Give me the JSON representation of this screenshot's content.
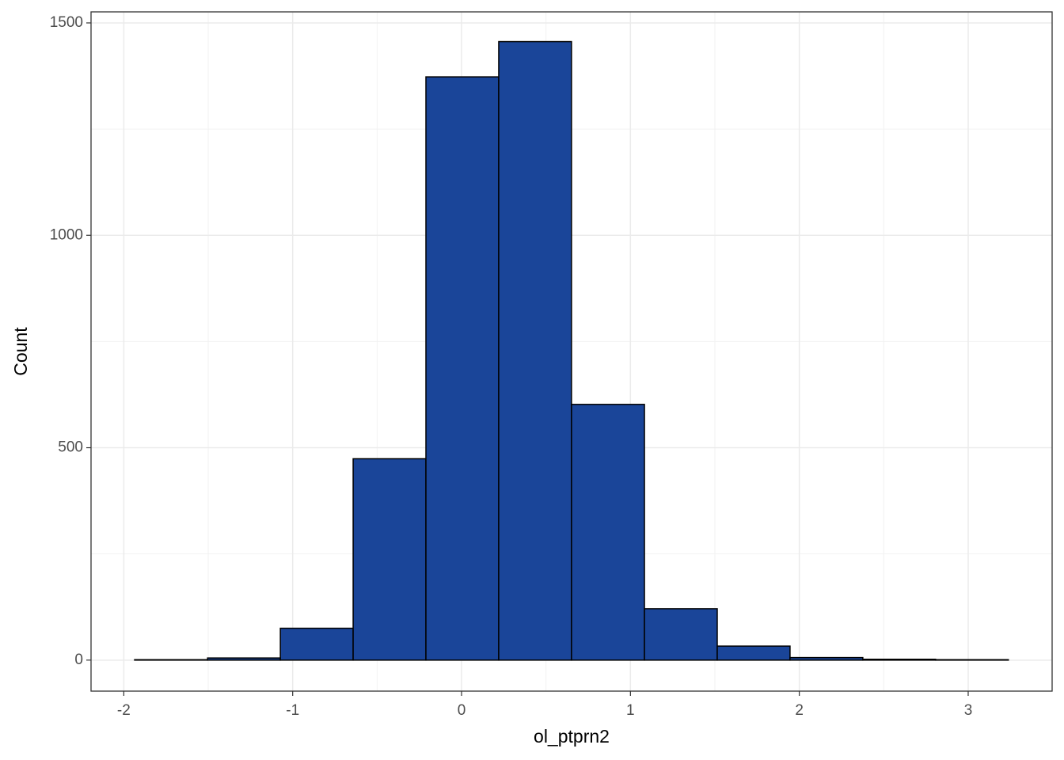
{
  "chart_data": {
    "type": "histogram",
    "x_label": "ol_ptprn2",
    "y_label": "Count",
    "bins": [
      -1.936,
      -1.504,
      -1.073,
      -0.642,
      -0.211,
      0.22,
      0.651,
      1.083,
      1.514,
      1.945,
      2.376,
      2.807,
      3.238
    ],
    "values": [
      1,
      5,
      75,
      474,
      1373,
      1456,
      602,
      121,
      33,
      6,
      2,
      1
    ],
    "color": "#1a4599",
    "xlim": [
      -2.194,
      3.497
    ],
    "ylim": [
      -73,
      1526
    ],
    "xticks": [
      -2,
      -1,
      0,
      1,
      2,
      3
    ],
    "yticks": [
      0,
      500,
      1000,
      1500
    ],
    "grid": true
  }
}
